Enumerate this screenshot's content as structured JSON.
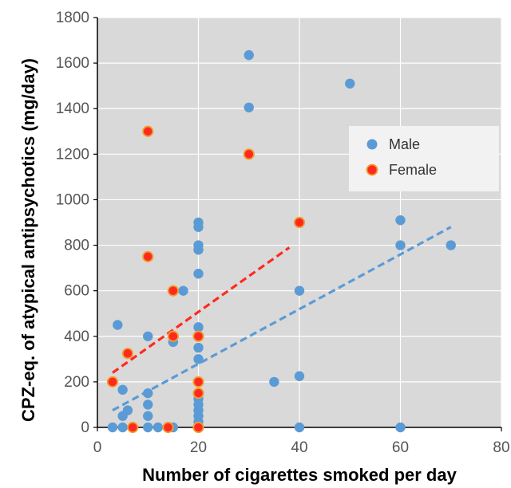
{
  "chart_data": {
    "type": "scatter",
    "title": "",
    "xlabel": "Number of cigarettes smoked per day",
    "ylabel": "CPZ-eq. of atypical antipsychotics (mg/day)",
    "xlim": [
      0,
      80
    ],
    "ylim": [
      0,
      1800
    ],
    "x_ticks": [
      "0",
      "20",
      "40",
      "60",
      "80"
    ],
    "y_ticks": [
      "0",
      "200",
      "400",
      "600",
      "800",
      "1000",
      "1200",
      "1400",
      "1600",
      "1800"
    ],
    "grid": true,
    "legend_position": "right",
    "series": [
      {
        "name": "Male",
        "color": "#5B9BD5",
        "marker": "circle",
        "points": [
          [
            3,
            0
          ],
          [
            4,
            450
          ],
          [
            5,
            165
          ],
          [
            5,
            0
          ],
          [
            5,
            50
          ],
          [
            6,
            75
          ],
          [
            10,
            400
          ],
          [
            10,
            150
          ],
          [
            10,
            100
          ],
          [
            10,
            50
          ],
          [
            10,
            0
          ],
          [
            12,
            0
          ],
          [
            15,
            0
          ],
          [
            15,
            375
          ],
          [
            17,
            600
          ],
          [
            20,
            900
          ],
          [
            20,
            880
          ],
          [
            20,
            800
          ],
          [
            20,
            780
          ],
          [
            20,
            675
          ],
          [
            20,
            440
          ],
          [
            20,
            350
          ],
          [
            20,
            300
          ],
          [
            20,
            150
          ],
          [
            20,
            125
          ],
          [
            20,
            100
          ],
          [
            20,
            75
          ],
          [
            20,
            50
          ],
          [
            20,
            25
          ],
          [
            20,
            0
          ],
          [
            30,
            1635
          ],
          [
            30,
            1405
          ],
          [
            35,
            200
          ],
          [
            40,
            600
          ],
          [
            40,
            225
          ],
          [
            40,
            0
          ],
          [
            50,
            1510
          ],
          [
            60,
            910
          ],
          [
            60,
            800
          ],
          [
            60,
            0
          ],
          [
            70,
            800
          ]
        ],
        "trend": {
          "x": [
            3,
            70
          ],
          "y": [
            75,
            880
          ]
        }
      },
      {
        "name": "Female",
        "color": "#FF2A1E",
        "edge_color": "#F0A030",
        "marker": "circle",
        "points": [
          [
            3,
            200
          ],
          [
            6,
            325
          ],
          [
            7,
            0
          ],
          [
            10,
            1300
          ],
          [
            10,
            750
          ],
          [
            14,
            0
          ],
          [
            15,
            600
          ],
          [
            15,
            400
          ],
          [
            20,
            400
          ],
          [
            20,
            200
          ],
          [
            20,
            150
          ],
          [
            20,
            0
          ],
          [
            30,
            1200
          ],
          [
            40,
            900
          ]
        ],
        "trend": {
          "x": [
            3,
            38
          ],
          "y": [
            240,
            790
          ]
        }
      }
    ]
  }
}
